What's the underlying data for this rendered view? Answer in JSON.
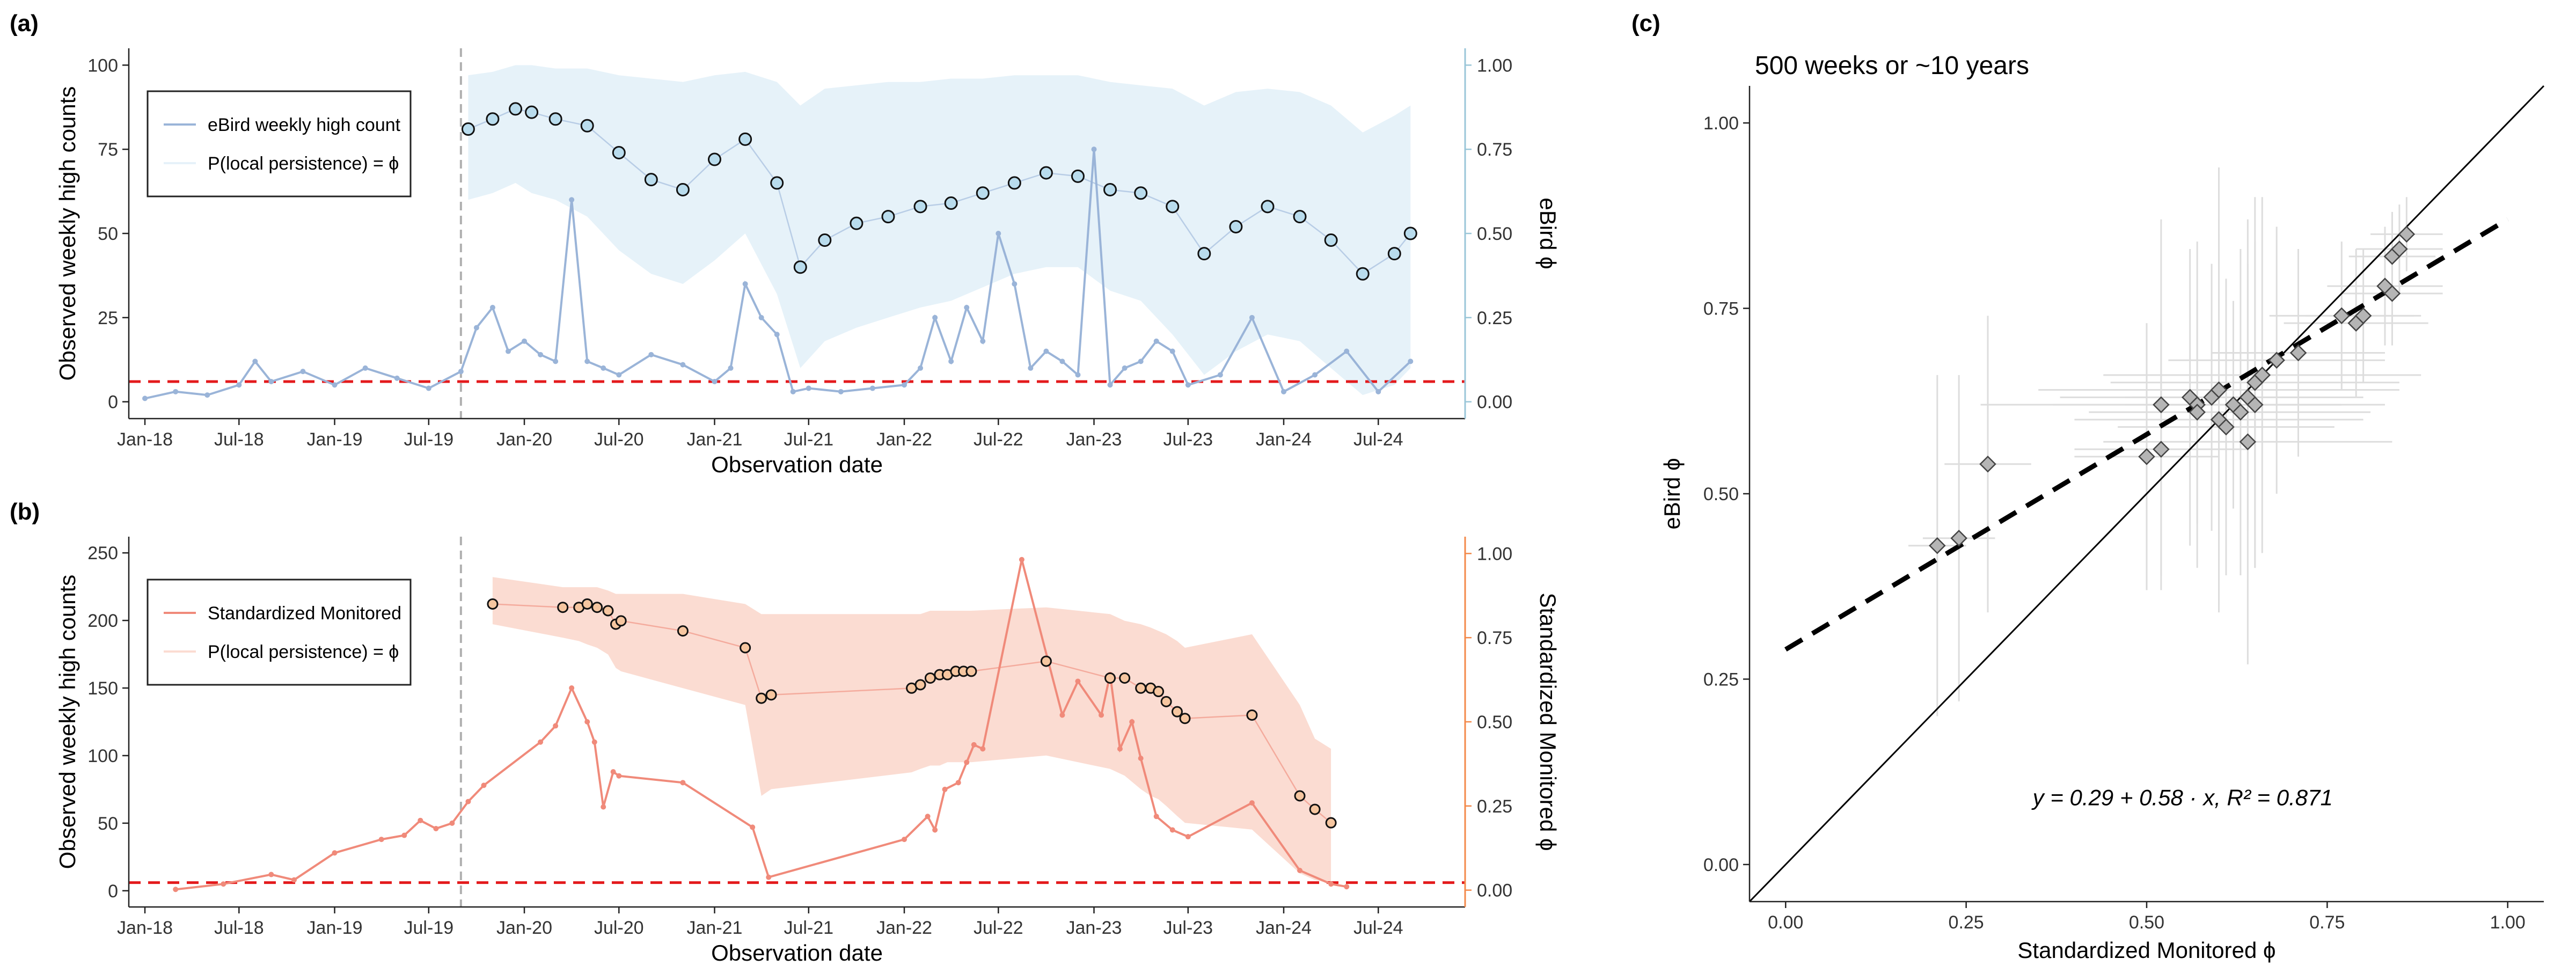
{
  "panels": {
    "a": {
      "label": "(a)",
      "ylabel_left": "Observed weekly high counts",
      "ylabel_right": "eBird ϕ",
      "xlabel": "Observation date",
      "legend": [
        "eBird weekly high count",
        "P(local persistence) = ϕ"
      ]
    },
    "b": {
      "label": "(b)",
      "ylabel_left": "Observed weekly high counts",
      "ylabel_right": "Standardized Monitored ϕ",
      "xlabel": "Observation date",
      "legend": [
        "Standardized Monitored",
        "P(local persistence) = ϕ"
      ]
    },
    "c": {
      "label": "(c)",
      "title": "500 weeks or ~10 years",
      "xlabel": "Standardized Monitored ϕ",
      "ylabel": "eBird ϕ",
      "equation": "y = 0.29 + 0.58 · x,  R² = 0.871"
    }
  },
  "colors": {
    "ebird_count": "#9ab4d8",
    "ebird_band": "#e6f2f9",
    "ebird_point": "#b9dced",
    "ebird_axis": "#9ac6d8",
    "std_count": "#f08a7a",
    "std_band": "#fbdcd2",
    "std_point": "#f6c6a0",
    "std_axis": "#f3894a",
    "threshold": "#e31a1c",
    "scatter_point": "#b5b5b5",
    "error_bar": "#dddddd"
  },
  "chart_data": [
    {
      "panel": "a",
      "type": "line",
      "x_axis": {
        "type": "date",
        "range": [
          "2017-12-01",
          "2024-12-15"
        ],
        "ticks": [
          "Jan-18",
          "Jul-18",
          "Jan-19",
          "Jul-19",
          "Jan-20",
          "Jul-20",
          "Jan-21",
          "Jul-21",
          "Jan-22",
          "Jul-22",
          "Jan-23",
          "Jul-23",
          "Jan-24",
          "Jul-24"
        ]
      },
      "y_left": {
        "range": [
          -5,
          105
        ],
        "ticks": [
          0,
          25,
          50,
          75,
          100
        ]
      },
      "y_right": {
        "range": [
          -0.05,
          1.05
        ],
        "ticks": [
          "0.00",
          "0.25",
          "0.50",
          "0.75",
          "1.00"
        ]
      },
      "threshold_count": 6,
      "vline_date": "2019-09-01",
      "count_series": {
        "name": "eBird weekly high count",
        "dates": [
          "2018-01-01",
          "2018-03-01",
          "2018-05-01",
          "2018-07-01",
          "2018-08-01",
          "2018-09-01",
          "2018-11-01",
          "2019-01-01",
          "2019-03-01",
          "2019-05-01",
          "2019-07-01",
          "2019-09-01",
          "2019-10-01",
          "2019-11-01",
          "2019-12-01",
          "2020-01-01",
          "2020-02-01",
          "2020-03-01",
          "2020-04-01",
          "2020-05-01",
          "2020-06-01",
          "2020-07-01",
          "2020-09-01",
          "2020-11-01",
          "2021-01-01",
          "2021-02-01",
          "2021-03-01",
          "2021-04-01",
          "2021-05-01",
          "2021-06-01",
          "2021-07-01",
          "2021-09-01",
          "2021-11-01",
          "2022-01-01",
          "2022-02-01",
          "2022-03-01",
          "2022-04-01",
          "2022-05-01",
          "2022-06-01",
          "2022-07-01",
          "2022-08-01",
          "2022-09-01",
          "2022-10-01",
          "2022-11-01",
          "2022-12-01",
          "2023-01-01",
          "2023-02-01",
          "2023-03-01",
          "2023-04-01",
          "2023-05-01",
          "2023-06-01",
          "2023-07-01",
          "2023-09-01",
          "2023-11-01",
          "2024-01-01",
          "2024-03-01",
          "2024-05-01",
          "2024-07-01",
          "2024-09-01"
        ],
        "values": [
          1,
          3,
          2,
          5,
          12,
          6,
          9,
          5,
          10,
          7,
          4,
          9,
          22,
          28,
          15,
          18,
          14,
          12,
          60,
          12,
          10,
          8,
          14,
          11,
          6,
          10,
          35,
          25,
          20,
          3,
          4,
          3,
          4,
          5,
          10,
          25,
          12,
          28,
          18,
          50,
          35,
          10,
          15,
          12,
          8,
          75,
          5,
          10,
          12,
          18,
          15,
          5,
          8,
          25,
          3,
          8,
          15,
          3,
          12
        ]
      },
      "phi_series": {
        "name": "P(local persistence) = ϕ",
        "dates": [
          "2019-09-15",
          "2019-11-01",
          "2019-12-15",
          "2020-01-15",
          "2020-03-01",
          "2020-05-01",
          "2020-07-01",
          "2020-09-01",
          "2020-11-01",
          "2021-01-01",
          "2021-03-01",
          "2021-05-01",
          "2021-06-15",
          "2021-08-01",
          "2021-10-01",
          "2021-12-01",
          "2022-02-01",
          "2022-04-01",
          "2022-06-01",
          "2022-08-01",
          "2022-10-01",
          "2022-12-01",
          "2023-02-01",
          "2023-04-01",
          "2023-06-01",
          "2023-08-01",
          "2023-10-01",
          "2023-12-01",
          "2024-02-01",
          "2024-04-01",
          "2024-06-01",
          "2024-08-01",
          "2024-09-01"
        ],
        "values": [
          0.81,
          0.84,
          0.87,
          0.86,
          0.84,
          0.82,
          0.74,
          0.66,
          0.63,
          0.72,
          0.78,
          0.65,
          0.4,
          0.48,
          0.53,
          0.55,
          0.58,
          0.59,
          0.62,
          0.65,
          0.68,
          0.67,
          0.63,
          0.62,
          0.58,
          0.44,
          0.52,
          0.58,
          0.55,
          0.48,
          0.38,
          0.44,
          0.5
        ],
        "lower": [
          0.6,
          0.62,
          0.65,
          0.62,
          0.6,
          0.55,
          0.45,
          0.38,
          0.35,
          0.42,
          0.5,
          0.32,
          0.1,
          0.18,
          0.22,
          0.25,
          0.28,
          0.3,
          0.34,
          0.38,
          0.4,
          0.4,
          0.33,
          0.3,
          0.2,
          0.08,
          0.15,
          0.2,
          0.18,
          0.1,
          0.02,
          0.05,
          0.1
        ],
        "upper": [
          0.97,
          0.98,
          1.0,
          1.0,
          0.99,
          0.99,
          0.97,
          0.96,
          0.95,
          0.97,
          0.98,
          0.95,
          0.88,
          0.93,
          0.94,
          0.95,
          0.95,
          0.96,
          0.96,
          0.97,
          0.97,
          0.97,
          0.95,
          0.94,
          0.93,
          0.88,
          0.92,
          0.93,
          0.92,
          0.88,
          0.8,
          0.85,
          0.88
        ]
      }
    },
    {
      "panel": "b",
      "type": "line",
      "x_axis": {
        "type": "date",
        "range": [
          "2017-12-01",
          "2024-12-15"
        ],
        "ticks": [
          "Jan-18",
          "Jul-18",
          "Jan-19",
          "Jul-19",
          "Jan-20",
          "Jul-20",
          "Jan-21",
          "Jul-21",
          "Jan-22",
          "Jul-22",
          "Jan-23",
          "Jul-23",
          "Jan-24",
          "Jul-24"
        ]
      },
      "y_left": {
        "range": [
          -12,
          262
        ],
        "ticks": [
          0,
          50,
          100,
          150,
          200,
          250
        ]
      },
      "y_right": {
        "range": [
          -0.05,
          1.05
        ],
        "ticks": [
          "0.00",
          "0.25",
          "0.50",
          "0.75",
          "1.00"
        ]
      },
      "threshold_count": 6,
      "vline_date": "2019-09-01",
      "count_series": {
        "name": "Standardized Monitored",
        "dates": [
          "2018-03-01",
          "2018-06-01",
          "2018-09-01",
          "2018-10-15",
          "2019-01-01",
          "2019-04-01",
          "2019-05-15",
          "2019-06-15",
          "2019-07-15",
          "2019-08-15",
          "2019-09-15",
          "2019-10-15",
          "2020-02-01",
          "2020-03-01",
          "2020-04-01",
          "2020-05-01",
          "2020-05-15",
          "2020-06-01",
          "2020-06-20",
          "2020-07-01",
          "2020-11-01",
          "2021-03-15",
          "2021-04-15",
          "2022-01-01",
          "2022-02-15",
          "2022-03-01",
          "2022-03-20",
          "2022-04-15",
          "2022-05-01",
          "2022-05-15",
          "2022-06-01",
          "2022-08-15",
          "2022-11-01",
          "2022-12-01",
          "2023-01-15",
          "2023-02-01",
          "2023-02-20",
          "2023-03-15",
          "2023-04-01",
          "2023-05-01",
          "2023-06-01",
          "2023-07-01",
          "2023-11-01",
          "2024-02-01",
          "2024-04-01",
          "2024-05-01"
        ],
        "values": [
          1,
          5,
          12,
          8,
          28,
          38,
          41,
          52,
          46,
          50,
          66,
          78,
          110,
          122,
          150,
          125,
          110,
          62,
          88,
          85,
          80,
          47,
          10,
          38,
          55,
          45,
          75,
          80,
          95,
          108,
          105,
          245,
          130,
          155,
          130,
          160,
          105,
          125,
          98,
          55,
          45,
          40,
          65,
          15,
          5,
          3
        ]
      },
      "phi_series": {
        "name": "P(local persistence) = ϕ",
        "dates": [
          "2019-11-01",
          "2020-03-15",
          "2020-04-15",
          "2020-05-01",
          "2020-05-20",
          "2020-06-10",
          "2020-06-25",
          "2020-07-05",
          "2020-11-01",
          "2021-03-01",
          "2021-04-01",
          "2021-04-20",
          "2022-01-15",
          "2022-02-01",
          "2022-02-20",
          "2022-03-10",
          "2022-03-25",
          "2022-04-10",
          "2022-04-25",
          "2022-05-10",
          "2022-10-01",
          "2023-02-01",
          "2023-03-01",
          "2023-04-01",
          "2023-04-20",
          "2023-05-05",
          "2023-05-20",
          "2023-06-10",
          "2023-06-25",
          "2023-11-01",
          "2024-02-01",
          "2024-03-01",
          "2024-04-01"
        ],
        "values": [
          0.85,
          0.84,
          0.84,
          0.85,
          0.84,
          0.83,
          0.79,
          0.8,
          0.77,
          0.72,
          0.57,
          0.58,
          0.6,
          0.61,
          0.63,
          0.64,
          0.64,
          0.65,
          0.65,
          0.65,
          0.68,
          0.63,
          0.63,
          0.6,
          0.6,
          0.59,
          0.56,
          0.53,
          0.51,
          0.52,
          0.28,
          0.24,
          0.2
        ],
        "lower": [
          0.79,
          0.75,
          0.74,
          0.73,
          0.72,
          0.7,
          0.66,
          0.65,
          0.6,
          0.55,
          0.28,
          0.3,
          0.35,
          0.36,
          0.37,
          0.37,
          0.38,
          0.38,
          0.38,
          0.38,
          0.4,
          0.36,
          0.34,
          0.3,
          0.28,
          0.27,
          0.25,
          0.22,
          0.2,
          0.18,
          0.05,
          0.03,
          0.02
        ],
        "upper": [
          0.93,
          0.9,
          0.9,
          0.9,
          0.9,
          0.89,
          0.88,
          0.88,
          0.88,
          0.85,
          0.82,
          0.82,
          0.82,
          0.82,
          0.83,
          0.83,
          0.83,
          0.83,
          0.83,
          0.83,
          0.84,
          0.82,
          0.8,
          0.79,
          0.78,
          0.77,
          0.76,
          0.74,
          0.72,
          0.76,
          0.55,
          0.45,
          0.42
        ]
      }
    },
    {
      "panel": "c",
      "type": "scatter",
      "xlim": [
        -0.05,
        1.05
      ],
      "ylim": [
        -0.05,
        1.05
      ],
      "ticks": [
        "0.00",
        "0.25",
        "0.50",
        "0.75",
        "1.00"
      ],
      "fit": {
        "intercept": 0.29,
        "slope": 0.58,
        "r2": 0.871
      },
      "points": [
        {
          "x": 0.21,
          "y": 0.43,
          "xerr": 0.04,
          "yerr": 0.23
        },
        {
          "x": 0.24,
          "y": 0.44,
          "xerr": 0.05,
          "yerr": 0.22
        },
        {
          "x": 0.28,
          "y": 0.54,
          "xerr": 0.06,
          "yerr": 0.2
        },
        {
          "x": 0.5,
          "y": 0.55,
          "xerr": 0.1,
          "yerr": 0.18
        },
        {
          "x": 0.52,
          "y": 0.56,
          "xerr": 0.12,
          "yerr": 0.17
        },
        {
          "x": 0.52,
          "y": 0.62,
          "xerr": 0.25,
          "yerr": 0.25
        },
        {
          "x": 0.56,
          "y": 0.63,
          "xerr": 0.18,
          "yerr": 0.2
        },
        {
          "x": 0.57,
          "y": 0.62,
          "xerr": 0.2,
          "yerr": 0.22
        },
        {
          "x": 0.57,
          "y": 0.61,
          "xerr": 0.15,
          "yerr": 0.15
        },
        {
          "x": 0.59,
          "y": 0.63,
          "xerr": 0.12,
          "yerr": 0.18
        },
        {
          "x": 0.6,
          "y": 0.64,
          "xerr": 0.25,
          "yerr": 0.3
        },
        {
          "x": 0.6,
          "y": 0.6,
          "xerr": 0.2,
          "yerr": 0.25
        },
        {
          "x": 0.61,
          "y": 0.59,
          "xerr": 0.15,
          "yerr": 0.2
        },
        {
          "x": 0.62,
          "y": 0.62,
          "xerr": 0.12,
          "yerr": 0.14
        },
        {
          "x": 0.63,
          "y": 0.61,
          "xerr": 0.18,
          "yerr": 0.22
        },
        {
          "x": 0.64,
          "y": 0.57,
          "xerr": 0.2,
          "yerr": 0.3
        },
        {
          "x": 0.64,
          "y": 0.63,
          "xerr": 0.16,
          "yerr": 0.18
        },
        {
          "x": 0.65,
          "y": 0.62,
          "xerr": 0.18,
          "yerr": 0.22
        },
        {
          "x": 0.65,
          "y": 0.65,
          "xerr": 0.2,
          "yerr": 0.25
        },
        {
          "x": 0.66,
          "y": 0.66,
          "xerr": 0.22,
          "yerr": 0.24
        },
        {
          "x": 0.68,
          "y": 0.68,
          "xerr": 0.15,
          "yerr": 0.18
        },
        {
          "x": 0.71,
          "y": 0.69,
          "xerr": 0.12,
          "yerr": 0.14
        },
        {
          "x": 0.77,
          "y": 0.74,
          "xerr": 0.1,
          "yerr": 0.1
        },
        {
          "x": 0.79,
          "y": 0.73,
          "xerr": 0.1,
          "yerr": 0.1
        },
        {
          "x": 0.8,
          "y": 0.74,
          "xerr": 0.08,
          "yerr": 0.09
        },
        {
          "x": 0.83,
          "y": 0.78,
          "xerr": 0.08,
          "yerr": 0.08
        },
        {
          "x": 0.84,
          "y": 0.77,
          "xerr": 0.07,
          "yerr": 0.07
        },
        {
          "x": 0.84,
          "y": 0.82,
          "xerr": 0.06,
          "yerr": 0.06
        },
        {
          "x": 0.85,
          "y": 0.83,
          "xerr": 0.06,
          "yerr": 0.06
        },
        {
          "x": 0.86,
          "y": 0.85,
          "xerr": 0.05,
          "yerr": 0.05
        }
      ]
    }
  ]
}
